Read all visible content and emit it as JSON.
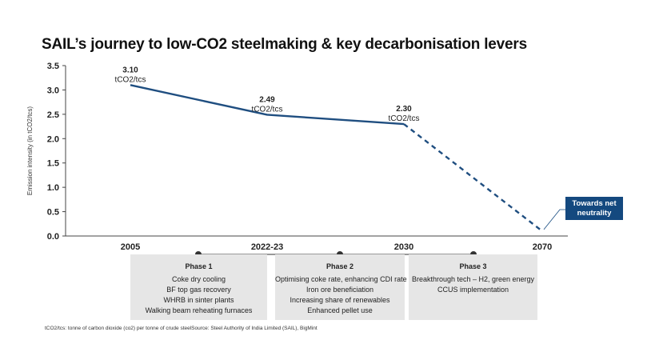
{
  "title": "SAIL’s journey to low-CO2 steelmaking & key decarbonisation levers",
  "chart_data": {
    "type": "line",
    "title": "SAIL’s journey to low-CO2 steelmaking & key decarbonisation levers",
    "xlabel": "",
    "ylabel": "Emission intensity (in tCO2/tcs)",
    "categories": [
      "2005",
      "2022-23",
      "2030",
      "2070"
    ],
    "series": [
      {
        "values": [
          3.1,
          2.49,
          2.3,
          0.1
        ],
        "projected_from_index": 2
      }
    ],
    "ylim": [
      0,
      3.5
    ],
    "yticks": [
      "0.0",
      "0.5",
      "1.0",
      "1.5",
      "2.0",
      "2.5",
      "3.0",
      "3.5"
    ],
    "data_labels": [
      {
        "value": "3.10",
        "unit": "tCO2/tcs"
      },
      {
        "value": "2.49",
        "unit": "tCO2/tcs"
      },
      {
        "value": "2.30",
        "unit": "tCO2/tcs"
      }
    ],
    "annotation": "Towards net neutrality",
    "grid": false,
    "line_color": "#1f4e80",
    "callout_color": "#14497f"
  },
  "phases": [
    {
      "title": "Phase 1",
      "items": [
        "Coke dry cooling",
        "BF top gas recovery",
        "WHRB in sinter plants",
        "Walking beam reheating furnaces"
      ]
    },
    {
      "title": "Phase 2",
      "items": [
        "Optimising coke rate, enhancing CDI rate",
        "Iron ore beneficiation",
        "Increasing share of renewables",
        "Enhanced pellet use"
      ]
    },
    {
      "title": "Phase 3",
      "items": [
        "Breakthrough tech – H2, green energy",
        "CCUS implementation"
      ]
    }
  ],
  "footnote": "tCO2/tcs: tonne of carbon dioxide (co2) per tonne of crude steelSource: Steel Authority of India Limited (SAIL), BigMint"
}
